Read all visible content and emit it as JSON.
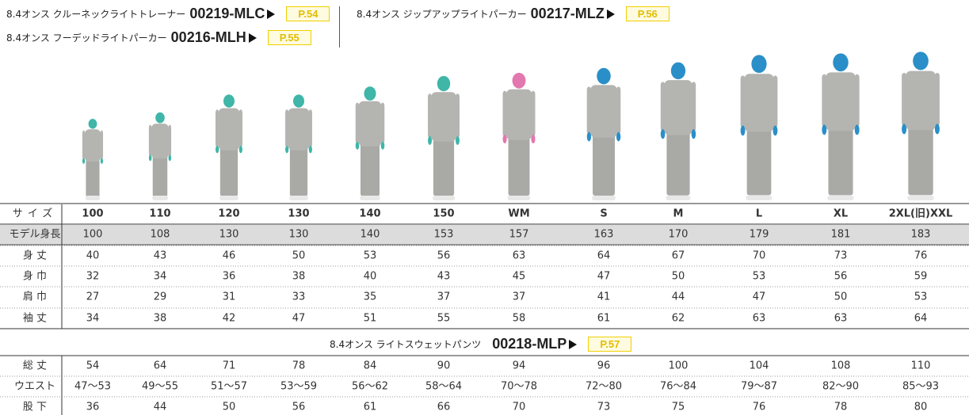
{
  "header": {
    "products": [
      {
        "name": "8.4オンス クルーネックライトトレーナー",
        "code": "00219-MLC",
        "page": "P.54"
      },
      {
        "name": "8.4オンス フーデッドライトパーカー",
        "code": "00216-MLH",
        "page": "P.55"
      },
      {
        "name": "8.4オンス ジップアップライトパーカー",
        "code": "00217-MLZ",
        "page": "P.56"
      }
    ]
  },
  "table": {
    "size_label": "サイズ",
    "sizes": [
      {
        "label": "100",
        "color": "#3fb6a8"
      },
      {
        "label": "110",
        "color": "#3fb6a8"
      },
      {
        "label": "120",
        "color": "#3fb6a8"
      },
      {
        "label": "130",
        "color": "#3fb6a8"
      },
      {
        "label": "140",
        "color": "#3fb6a8"
      },
      {
        "label": "150",
        "color": "#3fb6a8"
      },
      {
        "label": "WM",
        "color": "#e377b0"
      },
      {
        "label": "S",
        "color": "#2a8fc8"
      },
      {
        "label": "M",
        "color": "#2a8fc8"
      },
      {
        "label": "L",
        "color": "#2a8fc8"
      },
      {
        "label": "XL",
        "color": "#2a8fc8"
      },
      {
        "label": "2XL(旧)XXL",
        "color": "#2a8fc8"
      }
    ],
    "rows": [
      {
        "label": "モデル身長",
        "values": [
          100,
          108,
          130,
          130,
          140,
          153,
          157,
          163,
          170,
          179,
          181,
          183
        ]
      },
      {
        "label": "身 丈",
        "values": [
          40,
          43,
          46,
          50,
          53,
          56,
          63,
          64,
          67,
          70,
          73,
          76
        ]
      },
      {
        "label": "身 巾",
        "values": [
          32,
          34,
          36,
          38,
          40,
          43,
          45,
          47,
          50,
          53,
          56,
          59
        ]
      },
      {
        "label": "肩 巾",
        "values": [
          27,
          29,
          31,
          33,
          35,
          37,
          37,
          41,
          44,
          47,
          50,
          53
        ]
      },
      {
        "label": "袖 丈",
        "values": [
          34,
          38,
          42,
          47,
          51,
          55,
          58,
          61,
          62,
          63,
          63,
          64
        ]
      }
    ],
    "pants": {
      "name": "8.4オンス ライトスウェットパンツ",
      "code": "00218-MLP",
      "page": "P.57"
    },
    "pants_rows": [
      {
        "label": "総 丈",
        "values": [
          54,
          64,
          71,
          78,
          84,
          90,
          94,
          96,
          100,
          104,
          108,
          110
        ]
      },
      {
        "label": "ウエスト",
        "values": [
          "47〜53",
          "49〜55",
          "51〜57",
          "53〜59",
          "56〜62",
          "58〜64",
          "70〜78",
          "72〜80",
          "76〜84",
          "79〜87",
          "82〜90",
          "85〜93"
        ]
      },
      {
        "label": "股 下",
        "values": [
          36,
          44,
          50,
          56,
          61,
          66,
          70,
          73,
          75,
          76,
          78,
          80
        ]
      }
    ]
  }
}
